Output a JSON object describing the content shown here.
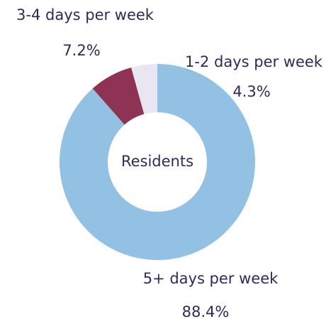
{
  "chart_data": {
    "type": "donut",
    "center_label": "Residents",
    "categories": [
      "5+ days per week",
      "3-4 days per week",
      "1-2 days per week"
    ],
    "values": [
      88.4,
      7.2,
      4.3
    ],
    "value_labels": [
      "88.4%",
      "7.2%",
      "4.3%"
    ],
    "colors": [
      "#93c1e3",
      "#8e3354",
      "#e8e6f3"
    ]
  }
}
